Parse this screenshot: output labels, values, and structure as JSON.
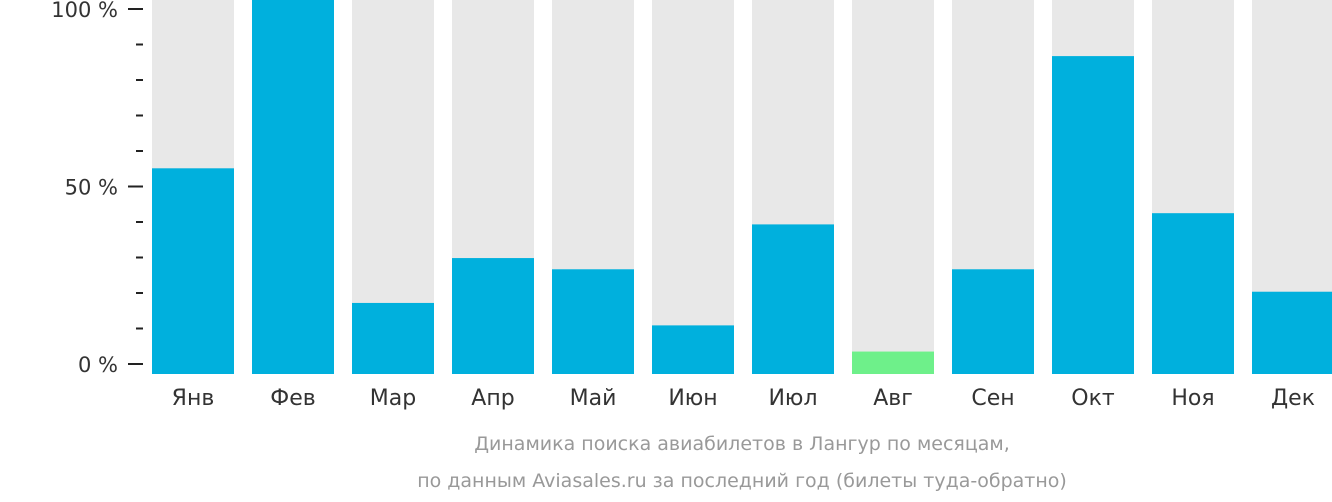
{
  "chart_data": {
    "type": "bar",
    "categories": [
      "Янв",
      "Фев",
      "Мар",
      "Апр",
      "Май",
      "Июн",
      "Июл",
      "Авг",
      "Сен",
      "Окт",
      "Ноя",
      "Дек"
    ],
    "values": [
      55,
      100,
      19,
      31,
      28,
      13,
      40,
      6,
      28,
      85,
      43,
      22
    ],
    "ylim": [
      0,
      100
    ],
    "yticks": [
      "0 %",
      "50 %",
      "100 %"
    ],
    "title_line1": "Динамика поиска авиабилетов в Лангур по месяцам,",
    "title_line2": "по данным Aviasales.ru за последний год (билеты туда-обратно)",
    "highlight_index": 7,
    "colors": {
      "bar": "#00b0dd",
      "highlight": "#6ef08a",
      "track": "#e8e8e8",
      "axis": "#222222"
    }
  }
}
